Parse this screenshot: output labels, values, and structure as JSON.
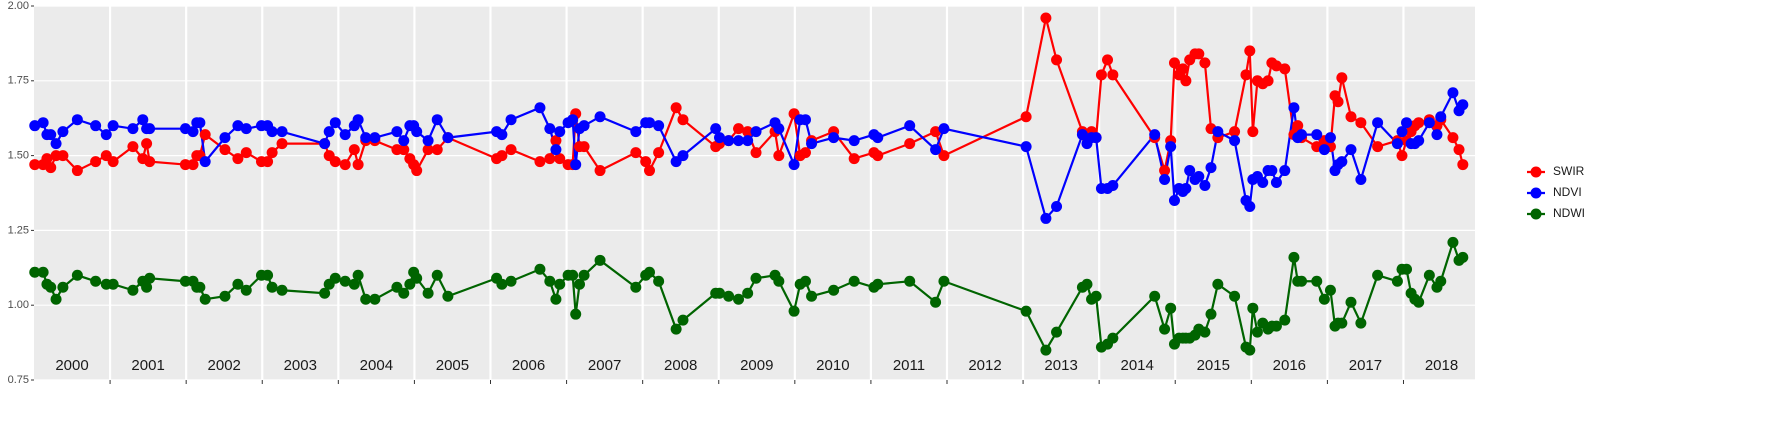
{
  "chart_data": {
    "type": "line",
    "x": [
      2000.01,
      2000.12,
      2000.17,
      2000.22,
      2000.29,
      2000.38,
      2000.57,
      2000.81,
      2000.95,
      2001.04,
      2001.3,
      2001.43,
      2001.48,
      2001.52,
      2001.99,
      2002.09,
      2002.14,
      2002.18,
      2002.25,
      2002.51,
      2002.68,
      2002.79,
      2002.99,
      2003.07,
      2003.13,
      2003.26,
      2003.82,
      2003.88,
      2003.96,
      2004.09,
      2004.21,
      2004.26,
      2004.36,
      2004.48,
      2004.77,
      2004.86,
      2004.94,
      2004.99,
      2005.03,
      2005.18,
      2005.3,
      2005.44,
      2006.08,
      2006.15,
      2006.27,
      2006.65,
      2006.78,
      2006.86,
      2006.91,
      2007.02,
      2007.08,
      2007.12,
      2007.17,
      2007.23,
      2007.44,
      2007.91,
      2008.04,
      2008.09,
      2008.21,
      2008.44,
      2008.53,
      2008.96,
      2009.01,
      2009.13,
      2009.26,
      2009.38,
      2009.49,
      2009.74,
      2009.79,
      2009.99,
      2010.07,
      2010.14,
      2010.22,
      2010.51,
      2010.78,
      2011.04,
      2011.09,
      2011.51,
      2011.85,
      2011.96,
      2013.04,
      2013.3,
      2013.44,
      2013.78,
      2013.84,
      2013.9,
      2013.96,
      2014.03,
      2014.11,
      2014.18,
      2014.73,
      2014.86,
      2014.94,
      2014.99,
      2015.05,
      2015.1,
      2015.14,
      2015.19,
      2015.26,
      2015.31,
      2015.39,
      2015.47,
      2015.56,
      2015.78,
      2015.93,
      2015.98,
      2016.02,
      2016.08,
      2016.15,
      2016.22,
      2016.27,
      2016.33,
      2016.44,
      2016.56,
      2016.61,
      2016.66,
      2016.86,
      2016.96,
      2017.04,
      2017.1,
      2017.14,
      2017.19,
      2017.31,
      2017.44,
      2017.66,
      2017.92,
      2017.98,
      2018.04,
      2018.1,
      2018.15,
      2018.2,
      2018.34,
      2018.44,
      2018.49,
      2018.65,
      2018.73,
      2018.78
    ],
    "series": [
      {
        "name": "SWIR",
        "color": "#ff0000",
        "values": [
          1.47,
          1.47,
          1.49,
          1.46,
          1.5,
          1.5,
          1.45,
          1.48,
          1.5,
          1.48,
          1.53,
          1.49,
          1.54,
          1.48,
          1.47,
          1.47,
          1.5,
          1.5,
          1.57,
          1.52,
          1.49,
          1.51,
          1.48,
          1.48,
          1.51,
          1.54,
          1.54,
          1.5,
          1.48,
          1.47,
          1.52,
          1.47,
          1.55,
          1.55,
          1.52,
          1.52,
          1.49,
          1.47,
          1.45,
          1.52,
          1.52,
          1.56,
          1.49,
          1.5,
          1.52,
          1.48,
          1.49,
          1.55,
          1.49,
          1.47,
          1.47,
          1.64,
          1.53,
          1.53,
          1.45,
          1.51,
          1.48,
          1.45,
          1.51,
          1.66,
          1.62,
          1.53,
          1.54,
          1.55,
          1.59,
          1.58,
          1.51,
          1.58,
          1.5,
          1.64,
          1.5,
          1.51,
          1.55,
          1.58,
          1.49,
          1.51,
          1.5,
          1.54,
          1.58,
          1.5,
          1.63,
          1.96,
          1.82,
          1.58,
          1.56,
          1.58,
          1.56,
          1.77,
          1.82,
          1.77,
          1.56,
          1.45,
          1.55,
          1.81,
          1.77,
          1.79,
          1.75,
          1.82,
          1.84,
          1.84,
          1.81,
          1.59,
          1.56,
          1.58,
          1.77,
          1.85,
          1.58,
          1.75,
          1.74,
          1.75,
          1.81,
          1.8,
          1.79,
          1.57,
          1.6,
          1.56,
          1.53,
          1.55,
          1.53,
          1.7,
          1.68,
          1.76,
          1.63,
          1.61,
          1.53,
          1.55,
          1.5,
          1.55,
          1.58,
          1.6,
          1.61,
          1.62,
          1.6,
          1.62,
          1.56,
          1.52,
          1.47
        ]
      },
      {
        "name": "NDVI",
        "color": "#0000ff",
        "values": [
          1.6,
          1.61,
          1.57,
          1.57,
          1.54,
          1.58,
          1.62,
          1.6,
          1.57,
          1.6,
          1.59,
          1.62,
          1.59,
          1.59,
          1.59,
          1.58,
          1.61,
          1.61,
          1.48,
          1.56,
          1.6,
          1.59,
          1.6,
          1.6,
          1.58,
          1.58,
          1.54,
          1.58,
          1.61,
          1.57,
          1.6,
          1.62,
          1.56,
          1.56,
          1.58,
          1.55,
          1.6,
          1.6,
          1.58,
          1.55,
          1.62,
          1.56,
          1.58,
          1.57,
          1.62,
          1.66,
          1.59,
          1.52,
          1.58,
          1.61,
          1.62,
          1.47,
          1.59,
          1.6,
          1.63,
          1.58,
          1.61,
          1.61,
          1.6,
          1.48,
          1.5,
          1.59,
          1.56,
          1.55,
          1.55,
          1.55,
          1.58,
          1.61,
          1.59,
          1.47,
          1.62,
          1.62,
          1.54,
          1.56,
          1.55,
          1.57,
          1.56,
          1.6,
          1.52,
          1.59,
          1.53,
          1.29,
          1.33,
          1.57,
          1.54,
          1.56,
          1.56,
          1.39,
          1.39,
          1.4,
          1.57,
          1.42,
          1.53,
          1.35,
          1.39,
          1.38,
          1.39,
          1.45,
          1.42,
          1.43,
          1.4,
          1.46,
          1.58,
          1.55,
          1.35,
          1.33,
          1.42,
          1.43,
          1.41,
          1.45,
          1.45,
          1.41,
          1.45,
          1.66,
          1.56,
          1.57,
          1.57,
          1.52,
          1.56,
          1.45,
          1.47,
          1.48,
          1.52,
          1.42,
          1.61,
          1.54,
          1.58,
          1.61,
          1.54,
          1.54,
          1.55,
          1.61,
          1.57,
          1.63,
          1.71,
          1.65,
          1.67
        ]
      },
      {
        "name": "NDWI",
        "color": "#006400",
        "values": [
          1.11,
          1.11,
          1.07,
          1.06,
          1.02,
          1.06,
          1.1,
          1.08,
          1.07,
          1.07,
          1.05,
          1.08,
          1.06,
          1.09,
          1.08,
          1.08,
          1.06,
          1.06,
          1.02,
          1.03,
          1.07,
          1.05,
          1.1,
          1.1,
          1.06,
          1.05,
          1.04,
          1.07,
          1.09,
          1.08,
          1.07,
          1.1,
          1.02,
          1.02,
          1.06,
          1.04,
          1.07,
          1.11,
          1.09,
          1.04,
          1.1,
          1.03,
          1.09,
          1.07,
          1.08,
          1.12,
          1.08,
          1.02,
          1.07,
          1.1,
          1.1,
          0.97,
          1.07,
          1.1,
          1.15,
          1.06,
          1.1,
          1.11,
          1.08,
          0.92,
          0.95,
          1.04,
          1.04,
          1.03,
          1.02,
          1.04,
          1.09,
          1.1,
          1.08,
          0.98,
          1.07,
          1.08,
          1.03,
          1.05,
          1.08,
          1.06,
          1.07,
          1.08,
          1.01,
          1.08,
          0.98,
          0.85,
          0.91,
          1.06,
          1.07,
          1.02,
          1.03,
          0.86,
          0.87,
          0.89,
          1.03,
          0.92,
          0.99,
          0.87,
          0.89,
          0.89,
          0.89,
          0.89,
          0.9,
          0.92,
          0.91,
          0.97,
          1.07,
          1.03,
          0.86,
          0.85,
          0.99,
          0.91,
          0.94,
          0.92,
          0.93,
          0.93,
          0.95,
          1.16,
          1.08,
          1.08,
          1.08,
          1.02,
          1.05,
          0.93,
          0.94,
          0.94,
          1.01,
          0.94,
          1.1,
          1.08,
          1.12,
          1.12,
          1.04,
          1.02,
          1.01,
          1.1,
          1.06,
          1.08,
          1.21,
          1.15,
          1.16
        ]
      }
    ],
    "xlim": [
      2000,
      2018.94
    ],
    "xticks": [
      2001,
      2002,
      2003,
      2004,
      2005,
      2006,
      2007,
      2008,
      2009,
      2010,
      2011,
      2012,
      2013,
      2014,
      2015,
      2016,
      2017,
      2018
    ],
    "year_labels": [
      2000,
      2001,
      2002,
      2003,
      2004,
      2005,
      2006,
      2007,
      2008,
      2009,
      2010,
      2011,
      2012,
      2013,
      2014,
      2015,
      2016,
      2017,
      2018
    ],
    "ylim": [
      0.75,
      2.0
    ],
    "yticks": [
      {
        "value": 0.75,
        "label": "0.75"
      },
      {
        "value": 1.0,
        "label": "1.00"
      },
      {
        "value": 1.25,
        "label": "1.25"
      },
      {
        "value": 1.5,
        "label": "1.50"
      },
      {
        "value": 1.75,
        "label": "1.75"
      },
      {
        "value": 2.0,
        "label": "2.00"
      }
    ],
    "grid": true,
    "legend": "right"
  }
}
